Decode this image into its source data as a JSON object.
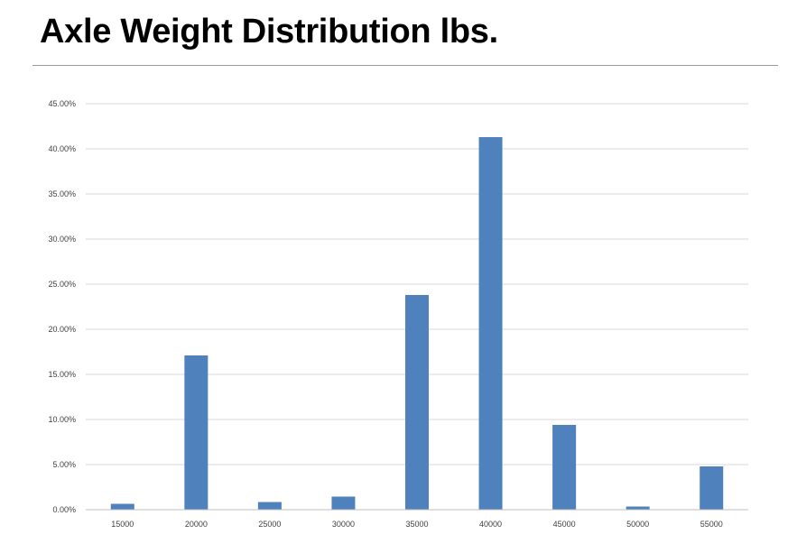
{
  "slide": {
    "title": "Axle Weight Distribution lbs."
  },
  "colors": {
    "bar": "#4f81bd",
    "grid": "#d9d9d9",
    "axis": "#bfbfbf",
    "tick_text": "#404040"
  },
  "chart_data": {
    "type": "bar",
    "title": "",
    "xlabel": "",
    "ylabel": "",
    "categories": [
      "15000",
      "20000",
      "25000",
      "30000",
      "35000",
      "40000",
      "45000",
      "50000",
      "55000"
    ],
    "series": [
      {
        "values": [
          0.0065,
          0.171,
          0.0085,
          0.0145,
          0.238,
          0.413,
          0.094,
          0.0035,
          0.048
        ]
      }
    ],
    "ylim": [
      0,
      0.45
    ],
    "yticks": [
      0,
      0.05,
      0.1,
      0.15,
      0.2,
      0.25,
      0.3,
      0.35,
      0.4,
      0.45
    ],
    "ytick_labels": [
      "0.00%",
      "5.00%",
      "10.00%",
      "15.00%",
      "20.00%",
      "25.00%",
      "30.00%",
      "35.00%",
      "40.00%",
      "45.00%"
    ],
    "grid": true,
    "legend": "none"
  }
}
